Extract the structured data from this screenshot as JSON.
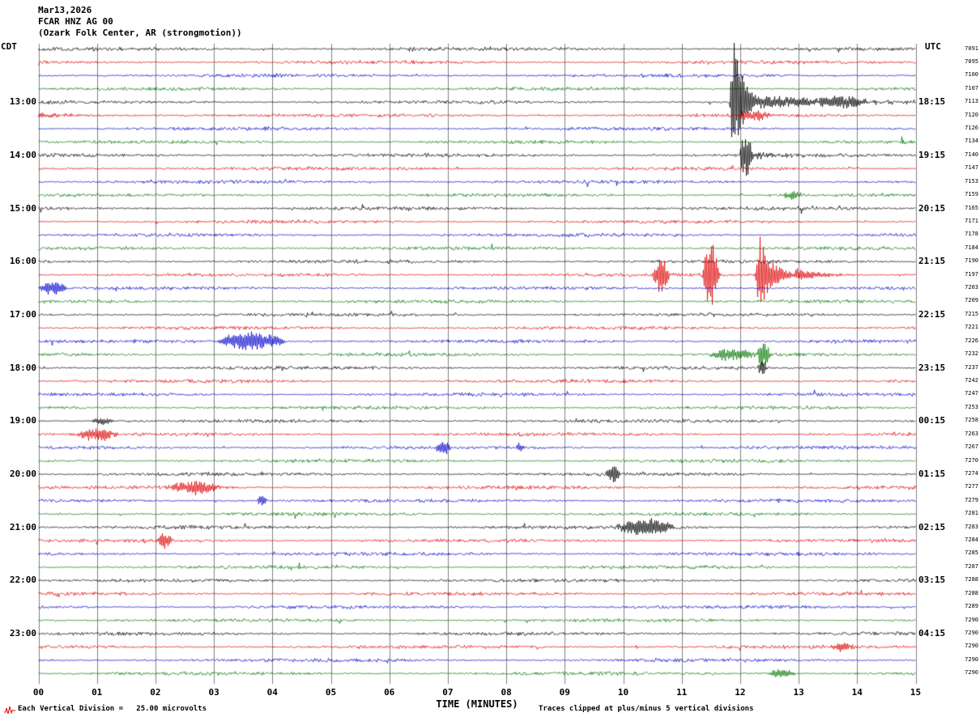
{
  "header": {
    "date": "Mar13,2026",
    "station": "FCAR HNZ AG 00",
    "location": "(Ozark Folk Center, AR (strongmotion))",
    "left_timezone": "CDT",
    "right_timezone": "UTC"
  },
  "footer": {
    "xaxis_title": "TIME (MINUTES)",
    "scale_note": "Each Vertical Division =   25.00 microvolts",
    "clip_note": "Traces clipped at plus/minus 5 vertical divisions"
  },
  "chart_data": {
    "type": "line",
    "x_range_minutes": [
      0,
      15
    ],
    "x_ticks": [
      "00",
      "01",
      "02",
      "03",
      "04",
      "05",
      "06",
      "07",
      "08",
      "09",
      "10",
      "11",
      "12",
      "13",
      "14",
      "15"
    ],
    "minutes_per_row": 15,
    "rows_total": 48,
    "division_microvolts": 25.0,
    "clip_divisions": 5,
    "noise_divisions": 0.08,
    "grid_color": "#808080",
    "row_colors_cycle": [
      "#000000",
      "#dd0000",
      "#0000cc",
      "#007700"
    ],
    "left_labels": [
      {
        "row": 4,
        "label": "13:00"
      },
      {
        "row": 8,
        "label": "14:00"
      },
      {
        "row": 12,
        "label": "15:00"
      },
      {
        "row": 16,
        "label": "16:00"
      },
      {
        "row": 20,
        "label": "17:00"
      },
      {
        "row": 24,
        "label": "18:00"
      },
      {
        "row": 28,
        "label": "19:00"
      },
      {
        "row": 32,
        "label": "20:00"
      },
      {
        "row": 36,
        "label": "21:00"
      },
      {
        "row": 40,
        "label": "22:00"
      },
      {
        "row": 44,
        "label": "23:00"
      }
    ],
    "right_labels": [
      {
        "row": 4,
        "label": "18:15"
      },
      {
        "row": 8,
        "label": "19:15"
      },
      {
        "row": 12,
        "label": "20:15"
      },
      {
        "row": 16,
        "label": "21:15"
      },
      {
        "row": 20,
        "label": "22:15"
      },
      {
        "row": 24,
        "label": "23:15"
      },
      {
        "row": 28,
        "label": "00:15"
      },
      {
        "row": 32,
        "label": "01:15"
      },
      {
        "row": 36,
        "label": "02:15"
      },
      {
        "row": 40,
        "label": "03:15"
      },
      {
        "row": 44,
        "label": "04:15"
      }
    ],
    "row_scale_values": [
      "7091",
      "7095",
      "7100",
      "7107",
      "7113",
      "7120",
      "7126",
      "7134",
      "7140",
      "7147",
      "7153",
      "7159",
      "7165",
      "7171",
      "7178",
      "7184",
      "7190",
      "7197",
      "7203",
      "7209",
      "7215",
      "7221",
      "7226",
      "7232",
      "7237",
      "7242",
      "7247",
      "7253",
      "7258",
      "7263",
      "7267",
      "7270",
      "7274",
      "7277",
      "7279",
      "7281",
      "7283",
      "7284",
      "7285",
      "7287",
      "7288",
      "7288",
      "7289",
      "7290",
      "7290",
      "7290",
      "7290",
      "7290"
    ],
    "events": [
      {
        "row": 4,
        "start_min": 11.82,
        "end_min": 12.35,
        "amplitude_divisions": 5.0,
        "shape": "quake"
      },
      {
        "row": 4,
        "start_min": 12.35,
        "end_min": 15.0,
        "amplitude_divisions": 0.5,
        "shape": "coda"
      },
      {
        "row": 4,
        "start_min": 13.3,
        "end_min": 14.2,
        "amplitude_divisions": 0.35,
        "shape": "burst"
      },
      {
        "row": 5,
        "start_min": 0.0,
        "end_min": 2.0,
        "amplitude_divisions": 0.15,
        "shape": "coda"
      },
      {
        "row": 5,
        "start_min": 11.9,
        "end_min": 12.6,
        "amplitude_divisions": 0.3,
        "shape": "burst"
      },
      {
        "row": 8,
        "start_min": 12.0,
        "end_min": 12.2,
        "amplitude_divisions": 1.6,
        "shape": "spike"
      },
      {
        "row": 8,
        "start_min": 12.2,
        "end_min": 13.2,
        "amplitude_divisions": 0.3,
        "shape": "coda"
      },
      {
        "row": 11,
        "start_min": 12.7,
        "end_min": 13.1,
        "amplitude_divisions": 0.3,
        "shape": "burst"
      },
      {
        "row": 17,
        "start_min": 10.5,
        "end_min": 10.8,
        "amplitude_divisions": 1.3,
        "shape": "burst"
      },
      {
        "row": 17,
        "start_min": 11.35,
        "end_min": 11.65,
        "amplitude_divisions": 2.5,
        "shape": "burst"
      },
      {
        "row": 17,
        "start_min": 12.25,
        "end_min": 12.95,
        "amplitude_divisions": 3.0,
        "shape": "quake"
      },
      {
        "row": 17,
        "start_min": 12.95,
        "end_min": 14.0,
        "amplitude_divisions": 0.5,
        "shape": "coda"
      },
      {
        "row": 18,
        "start_min": 0.0,
        "end_min": 0.5,
        "amplitude_divisions": 0.5,
        "shape": "burst"
      },
      {
        "row": 22,
        "start_min": 3.05,
        "end_min": 4.25,
        "amplitude_divisions": 0.7,
        "shape": "burst"
      },
      {
        "row": 23,
        "start_min": 11.45,
        "end_min": 12.3,
        "amplitude_divisions": 0.45,
        "shape": "burst"
      },
      {
        "row": 23,
        "start_min": 12.3,
        "end_min": 12.5,
        "amplitude_divisions": 1.0,
        "shape": "spike"
      },
      {
        "row": 24,
        "start_min": 12.3,
        "end_min": 12.45,
        "amplitude_divisions": 0.5,
        "shape": "spike"
      },
      {
        "row": 28,
        "start_min": 0.9,
        "end_min": 1.3,
        "amplitude_divisions": 0.25,
        "shape": "burst"
      },
      {
        "row": 29,
        "start_min": 0.6,
        "end_min": 1.4,
        "amplitude_divisions": 0.45,
        "shape": "burst"
      },
      {
        "row": 30,
        "start_min": 6.8,
        "end_min": 7.05,
        "amplitude_divisions": 0.55,
        "shape": "spike"
      },
      {
        "row": 30,
        "start_min": 8.15,
        "end_min": 8.3,
        "amplitude_divisions": 0.3,
        "shape": "spike"
      },
      {
        "row": 32,
        "start_min": 9.7,
        "end_min": 9.95,
        "amplitude_divisions": 0.75,
        "shape": "spike"
      },
      {
        "row": 33,
        "start_min": 2.15,
        "end_min": 3.15,
        "amplitude_divisions": 0.5,
        "shape": "burst"
      },
      {
        "row": 34,
        "start_min": 3.75,
        "end_min": 3.9,
        "amplitude_divisions": 0.45,
        "shape": "spike"
      },
      {
        "row": 36,
        "start_min": 9.85,
        "end_min": 10.9,
        "amplitude_divisions": 0.65,
        "shape": "burst"
      },
      {
        "row": 37,
        "start_min": 2.0,
        "end_min": 2.3,
        "amplitude_divisions": 0.6,
        "shape": "burst"
      },
      {
        "row": 45,
        "start_min": 13.55,
        "end_min": 13.95,
        "amplitude_divisions": 0.35,
        "shape": "burst"
      },
      {
        "row": 47,
        "start_min": 12.45,
        "end_min": 12.95,
        "amplitude_divisions": 0.35,
        "shape": "burst"
      }
    ]
  }
}
